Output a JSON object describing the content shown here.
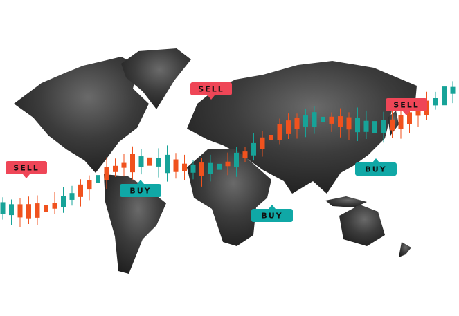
{
  "badges": [
    {
      "label": "SELL"
    },
    {
      "label": "SELL"
    },
    {
      "label": "SELL"
    },
    {
      "label": "BUY"
    },
    {
      "label": "BUY"
    },
    {
      "label": "BUY"
    }
  ]
}
